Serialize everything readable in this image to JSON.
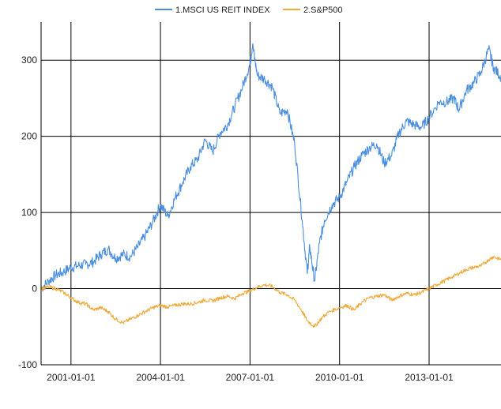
{
  "chart_data": {
    "type": "line",
    "title": "",
    "xlabel": "",
    "ylabel": "",
    "xlim": [
      "2000-01-01",
      "2015-05-31"
    ],
    "ylim": [
      -100,
      350
    ],
    "x_ticks": [
      "2001-01-01",
      "2004-01-01",
      "2007-01-01",
      "2010-01-01",
      "2013-01-01"
    ],
    "y_ticks": [
      -100,
      0,
      100,
      200,
      300
    ],
    "grid": true,
    "legend_position": "top-center",
    "series": [
      {
        "name": "1.MSCI US REIT INDEX",
        "color": "#4a8ee0",
        "x": [
          "2000-01-01",
          "2000-04-01",
          "2000-07-01",
          "2000-10-01",
          "2001-01-01",
          "2001-04-01",
          "2001-07-01",
          "2001-10-01",
          "2002-01-01",
          "2002-04-01",
          "2002-07-01",
          "2002-10-01",
          "2003-01-01",
          "2003-04-01",
          "2003-07-01",
          "2003-10-01",
          "2004-01-01",
          "2004-04-01",
          "2004-07-01",
          "2004-10-01",
          "2005-01-01",
          "2005-04-01",
          "2005-07-01",
          "2005-10-01",
          "2006-01-01",
          "2006-04-01",
          "2006-07-01",
          "2006-10-01",
          "2007-01-01",
          "2007-02-01",
          "2007-04-01",
          "2007-07-01",
          "2007-10-01",
          "2008-01-01",
          "2008-04-01",
          "2008-07-01",
          "2008-10-01",
          "2008-12-01",
          "2009-01-01",
          "2009-03-01",
          "2009-05-01",
          "2009-07-01",
          "2009-10-01",
          "2010-01-01",
          "2010-04-01",
          "2010-07-01",
          "2010-10-01",
          "2011-01-01",
          "2011-04-01",
          "2011-07-01",
          "2011-10-01",
          "2012-01-01",
          "2012-04-01",
          "2012-07-01",
          "2012-10-01",
          "2013-01-01",
          "2013-05-01",
          "2013-08-01",
          "2013-11-01",
          "2014-01-01",
          "2014-04-01",
          "2014-07-01",
          "2014-10-01",
          "2015-01-01",
          "2015-03-01",
          "2015-05-31"
        ],
        "y": [
          0,
          10,
          18,
          22,
          28,
          30,
          32,
          35,
          45,
          52,
          40,
          45,
          42,
          55,
          70,
          88,
          110,
          95,
          120,
          140,
          160,
          170,
          195,
          180,
          205,
          215,
          240,
          265,
          295,
          320,
          280,
          275,
          265,
          230,
          235,
          190,
          90,
          20,
          55,
          10,
          60,
          90,
          110,
          120,
          140,
          160,
          175,
          185,
          190,
          165,
          175,
          205,
          220,
          215,
          212,
          225,
          245,
          245,
          250,
          235,
          260,
          270,
          285,
          315,
          290,
          278
        ],
        "y_extra_unused": null
      },
      {
        "name": "2.S&P500",
        "color": "#f0a838",
        "x": [
          "2000-01-01",
          "2000-04-01",
          "2000-07-01",
          "2000-10-01",
          "2001-01-01",
          "2001-04-01",
          "2001-07-01",
          "2001-10-01",
          "2002-01-01",
          "2002-04-01",
          "2002-07-01",
          "2002-10-01",
          "2003-01-01",
          "2003-04-01",
          "2003-07-01",
          "2003-10-01",
          "2004-01-01",
          "2004-04-01",
          "2004-07-01",
          "2004-10-01",
          "2005-01-01",
          "2005-04-01",
          "2005-07-01",
          "2005-10-01",
          "2006-01-01",
          "2006-04-01",
          "2006-07-01",
          "2006-10-01",
          "2007-01-01",
          "2007-04-01",
          "2007-07-01",
          "2007-10-01",
          "2008-01-01",
          "2008-04-01",
          "2008-07-01",
          "2008-10-01",
          "2008-12-01",
          "2009-03-01",
          "2009-06-01",
          "2009-09-01",
          "2010-01-01",
          "2010-04-01",
          "2010-07-01",
          "2010-10-01",
          "2011-01-01",
          "2011-04-01",
          "2011-07-01",
          "2011-10-01",
          "2012-01-01",
          "2012-04-01",
          "2012-07-01",
          "2012-10-01",
          "2013-01-01",
          "2013-04-01",
          "2013-07-01",
          "2013-10-01",
          "2014-01-01",
          "2014-04-01",
          "2014-07-01",
          "2014-10-01",
          "2015-01-01",
          "2015-03-01",
          "2015-05-31"
        ],
        "y": [
          0,
          2,
          0,
          -5,
          -12,
          -18,
          -20,
          -28,
          -25,
          -30,
          -40,
          -45,
          -40,
          -35,
          -30,
          -25,
          -22,
          -24,
          -22,
          -20,
          -20,
          -18,
          -15,
          -16,
          -12,
          -10,
          -13,
          -6,
          -3,
          2,
          5,
          3,
          -5,
          -8,
          -15,
          -30,
          -42,
          -50,
          -38,
          -30,
          -25,
          -22,
          -28,
          -18,
          -12,
          -10,
          -8,
          -15,
          -10,
          -6,
          -8,
          -5,
          0,
          5,
          10,
          15,
          20,
          25,
          28,
          30,
          38,
          42,
          38
        ]
      }
    ]
  }
}
